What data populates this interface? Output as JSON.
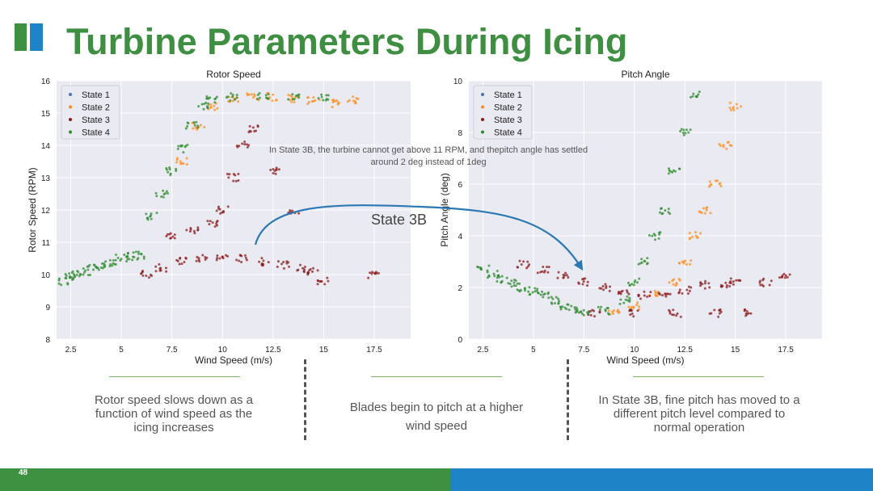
{
  "page": {
    "title": "Turbine Parameters During Icing",
    "page_number": "48",
    "annotation": "In State 3B, the turbine cannot get above 11 RPM, and thepitch angle has settled around 2 deg instead of 1deg",
    "callout_label": "State 3B",
    "captions": [
      "Rotor speed slows down as a function of wind speed as the icing increases",
      "Blades begin to pitch at a higher wind speed",
      "In State 3B, fine pitch has moved to a different pitch level compared to normal operation"
    ],
    "colors": {
      "title": "#3f8f43",
      "brand_green": "#3f9142",
      "brand_blue": "#1f83c7",
      "arrow": "#2a78b4"
    }
  },
  "chart_data": [
    {
      "type": "scatter",
      "title": "Rotor Speed",
      "xlabel": "Wind Speed (m/s)",
      "ylabel": "Rotor Speed (RPM)",
      "xlim": [
        1.8,
        19.3
      ],
      "ylim": [
        8,
        16
      ],
      "xticks": [
        2.5,
        5.0,
        7.5,
        10.0,
        12.5,
        15.0,
        17.5
      ],
      "yticks": [
        8,
        9,
        10,
        11,
        12,
        13,
        14,
        15,
        16
      ],
      "grid": true,
      "legend": "top-left",
      "series": [
        {
          "name": "State 1",
          "color": "#4c72b0"
        },
        {
          "name": "State 2",
          "color": "#ff8c1a"
        },
        {
          "name": "State 3",
          "color": "#8b1a1a"
        },
        {
          "name": "State 4",
          "color": "#2e8b2e"
        }
      ],
      "data": [
        [
          2.2,
          9.8,
          4
        ],
        [
          2.5,
          9.95,
          4
        ],
        [
          2.8,
          10.0,
          4
        ],
        [
          3.2,
          10.1,
          4
        ],
        [
          3.6,
          10.2,
          4
        ],
        [
          4.0,
          10.3,
          4
        ],
        [
          4.5,
          10.35,
          4
        ],
        [
          5.0,
          10.5,
          4
        ],
        [
          5.5,
          10.55,
          4
        ],
        [
          5.9,
          10.6,
          4
        ],
        [
          6.5,
          11.8,
          4
        ],
        [
          7.0,
          12.5,
          4
        ],
        [
          7.5,
          13.2,
          4
        ],
        [
          8.0,
          13.9,
          4
        ],
        [
          8.5,
          14.6,
          4
        ],
        [
          9.0,
          15.2,
          4
        ],
        [
          9.5,
          15.4,
          4
        ],
        [
          10.5,
          15.5,
          4
        ],
        [
          12.0,
          15.55,
          4
        ],
        [
          13.5,
          15.5,
          4
        ],
        [
          15.0,
          15.5,
          4
        ],
        [
          8.0,
          13.5,
          2
        ],
        [
          8.8,
          14.6,
          2
        ],
        [
          9.5,
          15.2,
          2
        ],
        [
          10.5,
          15.4,
          2
        ],
        [
          11.5,
          15.5,
          2
        ],
        [
          12.5,
          15.5,
          2
        ],
        [
          13.5,
          15.45,
          2
        ],
        [
          14.5,
          15.4,
          2
        ],
        [
          15.5,
          15.3,
          2
        ],
        [
          16.5,
          15.4,
          2
        ],
        [
          6.2,
          10.0,
          3
        ],
        [
          7.0,
          10.2,
          3
        ],
        [
          8.0,
          10.4,
          3
        ],
        [
          9.0,
          10.5,
          3
        ],
        [
          10.0,
          10.55,
          3
        ],
        [
          11.0,
          10.5,
          3
        ],
        [
          12.0,
          10.4,
          3
        ],
        [
          13.0,
          10.3,
          3
        ],
        [
          14.0,
          10.2,
          3
        ],
        [
          14.5,
          10.1,
          3
        ],
        [
          7.5,
          11.2,
          3
        ],
        [
          8.5,
          11.4,
          3
        ],
        [
          9.5,
          11.6,
          3
        ],
        [
          10.0,
          12.0,
          3
        ],
        [
          10.5,
          13.0,
          3
        ],
        [
          11.0,
          14.0,
          3
        ],
        [
          11.5,
          14.5,
          3
        ],
        [
          12.5,
          13.2,
          3
        ],
        [
          13.5,
          12.0,
          3
        ],
        [
          15.0,
          9.8,
          3
        ],
        [
          17.5,
          10.0,
          3
        ]
      ]
    },
    {
      "type": "scatter",
      "title": "Pitch Angle",
      "xlabel": "Wind Speed (m/s)",
      "ylabel": "Pitch Angle (deg)",
      "xlim": [
        1.8,
        19.3
      ],
      "ylim": [
        0,
        10
      ],
      "xticks": [
        2.5,
        5.0,
        7.5,
        10.0,
        12.5,
        15.0,
        17.5
      ],
      "yticks": [
        0,
        2,
        4,
        6,
        8,
        10
      ],
      "grid": true,
      "legend": "top-left",
      "series": [
        {
          "name": "State 1",
          "color": "#4c72b0"
        },
        {
          "name": "State 2",
          "color": "#ff8c1a"
        },
        {
          "name": "State 3",
          "color": "#8b1a1a"
        },
        {
          "name": "State 4",
          "color": "#2e8b2e"
        }
      ],
      "data": [
        [
          2.5,
          2.7,
          4
        ],
        [
          3.0,
          2.5,
          4
        ],
        [
          3.5,
          2.3,
          4
        ],
        [
          4.0,
          2.15,
          4
        ],
        [
          4.5,
          2.0,
          4
        ],
        [
          5.0,
          1.85,
          4
        ],
        [
          5.5,
          1.7,
          4
        ],
        [
          6.0,
          1.5,
          4
        ],
        [
          6.5,
          1.3,
          4
        ],
        [
          7.0,
          1.15,
          4
        ],
        [
          7.5,
          1.05,
          4
        ],
        [
          8.5,
          1.1,
          4
        ],
        [
          9.5,
          1.5,
          4
        ],
        [
          10.0,
          2.2,
          4
        ],
        [
          10.5,
          3.0,
          4
        ],
        [
          11.0,
          4.0,
          4
        ],
        [
          11.5,
          5.0,
          4
        ],
        [
          12.0,
          6.5,
          4
        ],
        [
          12.5,
          8.0,
          4
        ],
        [
          13.0,
          9.5,
          4
        ],
        [
          9.0,
          1.1,
          2
        ],
        [
          10.0,
          1.3,
          2
        ],
        [
          11.0,
          1.8,
          2
        ],
        [
          12.0,
          2.2,
          2
        ],
        [
          12.5,
          3.0,
          2
        ],
        [
          13.0,
          4.0,
          2
        ],
        [
          13.5,
          5.0,
          2
        ],
        [
          14.0,
          6.0,
          2
        ],
        [
          14.5,
          7.5,
          2
        ],
        [
          15.0,
          9.0,
          2
        ],
        [
          4.5,
          2.9,
          3
        ],
        [
          5.5,
          2.7,
          3
        ],
        [
          6.5,
          2.5,
          3
        ],
        [
          7.5,
          2.2,
          3
        ],
        [
          8.5,
          2.0,
          3
        ],
        [
          9.5,
          1.8,
          3
        ],
        [
          10.5,
          1.7,
          3
        ],
        [
          11.5,
          1.8,
          3
        ],
        [
          12.5,
          1.9,
          3
        ],
        [
          13.5,
          2.1,
          3
        ],
        [
          14.5,
          2.1,
          3
        ],
        [
          15.0,
          2.2,
          3
        ],
        [
          16.5,
          2.2,
          3
        ],
        [
          17.5,
          2.4,
          3
        ],
        [
          8.0,
          1.0,
          3
        ],
        [
          10.0,
          1.0,
          3
        ],
        [
          12.0,
          1.0,
          3
        ],
        [
          14.0,
          1.0,
          3
        ],
        [
          15.5,
          1.0,
          3
        ]
      ]
    }
  ]
}
